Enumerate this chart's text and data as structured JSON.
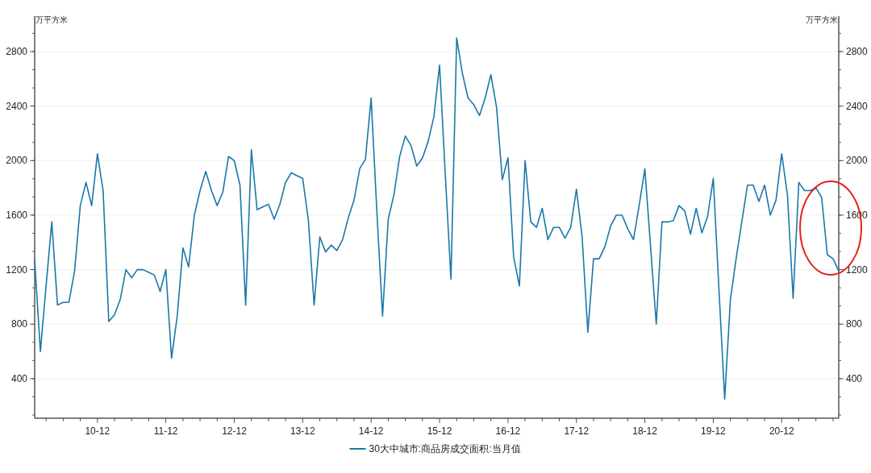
{
  "chart_data": {
    "type": "line",
    "ylabel": "万平方米",
    "y2label": "万平方米",
    "x": [
      "2010-01",
      "2010-02",
      "2010-03",
      "2010-04",
      "2010-05",
      "2010-06",
      "2010-07",
      "2010-08",
      "2010-09",
      "2010-10",
      "2010-11",
      "2010-12",
      "2011-01",
      "2011-02",
      "2011-03",
      "2011-04",
      "2011-05",
      "2011-06",
      "2011-07",
      "2011-08",
      "2011-09",
      "2011-10",
      "2011-11",
      "2011-12",
      "2012-01",
      "2012-02",
      "2012-03",
      "2012-04",
      "2012-05",
      "2012-06",
      "2012-07",
      "2012-08",
      "2012-09",
      "2012-10",
      "2012-11",
      "2012-12",
      "2013-01",
      "2013-02",
      "2013-03",
      "2013-04",
      "2013-05",
      "2013-06",
      "2013-07",
      "2013-08",
      "2013-09",
      "2013-10",
      "2013-11",
      "2013-12",
      "2014-01",
      "2014-02",
      "2014-03",
      "2014-04",
      "2014-05",
      "2014-06",
      "2014-07",
      "2014-08",
      "2014-09",
      "2014-10",
      "2014-11",
      "2014-12",
      "2015-01",
      "2015-02",
      "2015-03",
      "2015-04",
      "2015-05",
      "2015-06",
      "2015-07",
      "2015-08",
      "2015-09",
      "2015-10",
      "2015-11",
      "2015-12",
      "2016-01",
      "2016-02",
      "2016-03",
      "2016-04",
      "2016-05",
      "2016-06",
      "2016-07",
      "2016-08",
      "2016-09",
      "2016-10",
      "2016-11",
      "2016-12",
      "2017-01",
      "2017-02",
      "2017-03",
      "2017-04",
      "2017-05",
      "2017-06",
      "2017-07",
      "2017-08",
      "2017-09",
      "2017-10",
      "2017-11",
      "2017-12",
      "2018-01",
      "2018-02",
      "2018-03",
      "2018-04",
      "2018-05",
      "2018-06",
      "2018-07",
      "2018-08",
      "2018-09",
      "2018-10",
      "2018-11",
      "2018-12",
      "2019-01",
      "2019-02",
      "2019-03",
      "2019-04",
      "2019-05",
      "2019-06",
      "2019-07",
      "2019-08",
      "2019-09",
      "2019-10",
      "2019-11",
      "2019-12",
      "2020-01",
      "2020-02",
      "2020-03",
      "2020-04",
      "2020-05",
      "2020-06",
      "2020-07",
      "2020-08",
      "2020-09",
      "2020-10",
      "2020-11",
      "2020-12",
      "2021-01",
      "2021-02",
      "2021-03",
      "2021-04",
      "2021-05",
      "2021-06",
      "2021-07",
      "2021-08",
      "2021-09",
      "2021-10"
    ],
    "series": [
      {
        "name": "30大中城市:商品房成交面积:当月值",
        "color": "#1a78a8",
        "values": [
          1270,
          600,
          1080,
          1550,
          940,
          960,
          960,
          1190,
          1670,
          1840,
          1670,
          2050,
          1780,
          820,
          870,
          980,
          1200,
          1140,
          1200,
          1200,
          1180,
          1160,
          1040,
          1200,
          550,
          860,
          1360,
          1220,
          1600,
          1780,
          1920,
          1780,
          1670,
          1770,
          2030,
          2000,
          1820,
          940,
          2080,
          1640,
          1660,
          1680,
          1570,
          1680,
          1840,
          1910,
          1890,
          1870,
          1560,
          940,
          1440,
          1330,
          1380,
          1340,
          1420,
          1580,
          1710,
          1940,
          2010,
          2460,
          1630,
          860,
          1570,
          1750,
          2030,
          2180,
          2110,
          1960,
          2020,
          2140,
          2320,
          2700,
          1900,
          1130,
          2900,
          2640,
          2460,
          2410,
          2330,
          2460,
          2630,
          2390,
          1860,
          2020,
          1290,
          1080,
          2000,
          1550,
          1510,
          1650,
          1420,
          1510,
          1510,
          1430,
          1510,
          1790,
          1440,
          740,
          1280,
          1280,
          1370,
          1520,
          1600,
          1600,
          1500,
          1420,
          1670,
          1940,
          1370,
          800,
          1550,
          1550,
          1560,
          1670,
          1630,
          1460,
          1650,
          1470,
          1590,
          1870,
          1050,
          250,
          980,
          1280,
          1550,
          1820,
          1820,
          1700,
          1820,
          1600,
          1710,
          2050,
          1750,
          990,
          1840,
          1780,
          1780,
          1800,
          1730,
          1310,
          1280,
          1190
        ]
      }
    ],
    "xlim": [
      "2010-01",
      "2021-10"
    ],
    "xticks": [
      {
        "value": "2010-03",
        "label": null
      },
      {
        "value": "2010-06",
        "label": null
      },
      {
        "value": "2010-09",
        "label": null
      },
      {
        "value": "2010-12",
        "label": "10-12"
      },
      {
        "value": "2011-03",
        "label": null
      },
      {
        "value": "2011-06",
        "label": null
      },
      {
        "value": "2011-09",
        "label": null
      },
      {
        "value": "2011-12",
        "label": "11-12"
      },
      {
        "value": "2012-03",
        "label": null
      },
      {
        "value": "2012-06",
        "label": null
      },
      {
        "value": "2012-09",
        "label": null
      },
      {
        "value": "2012-12",
        "label": "12-12"
      },
      {
        "value": "2013-03",
        "label": null
      },
      {
        "value": "2013-06",
        "label": null
      },
      {
        "value": "2013-09",
        "label": null
      },
      {
        "value": "2013-12",
        "label": "13-12"
      },
      {
        "value": "2014-03",
        "label": null
      },
      {
        "value": "2014-06",
        "label": null
      },
      {
        "value": "2014-09",
        "label": null
      },
      {
        "value": "2014-12",
        "label": "14-12"
      },
      {
        "value": "2015-03",
        "label": null
      },
      {
        "value": "2015-06",
        "label": null
      },
      {
        "value": "2015-09",
        "label": null
      },
      {
        "value": "2015-12",
        "label": "15-12"
      },
      {
        "value": "2016-03",
        "label": null
      },
      {
        "value": "2016-06",
        "label": null
      },
      {
        "value": "2016-09",
        "label": null
      },
      {
        "value": "2016-12",
        "label": "16-12"
      },
      {
        "value": "2017-03",
        "label": null
      },
      {
        "value": "2017-06",
        "label": null
      },
      {
        "value": "2017-09",
        "label": null
      },
      {
        "value": "2017-12",
        "label": "17-12"
      },
      {
        "value": "2018-03",
        "label": null
      },
      {
        "value": "2018-06",
        "label": null
      },
      {
        "value": "2018-09",
        "label": null
      },
      {
        "value": "2018-12",
        "label": "18-12"
      },
      {
        "value": "2019-03",
        "label": null
      },
      {
        "value": "2019-06",
        "label": null
      },
      {
        "value": "2019-09",
        "label": null
      },
      {
        "value": "2019-12",
        "label": "19-12"
      },
      {
        "value": "2020-03",
        "label": null
      },
      {
        "value": "2020-06",
        "label": null
      },
      {
        "value": "2020-09",
        "label": null
      },
      {
        "value": "2020-12",
        "label": "20-12"
      },
      {
        "value": "2021-03",
        "label": null
      },
      {
        "value": "2021-06",
        "label": null
      },
      {
        "value": "2021-09",
        "label": null
      }
    ],
    "ylim": [
      110,
      3060
    ],
    "yticks": [
      400,
      800,
      1200,
      1600,
      2000,
      2400,
      2800
    ],
    "y2lim": [
      110,
      3060
    ],
    "y2ticks": [
      400,
      800,
      1200,
      1600,
      2000,
      2400,
      2800
    ],
    "grid": "y",
    "legend": "bottom",
    "line_style": "solid"
  }
}
